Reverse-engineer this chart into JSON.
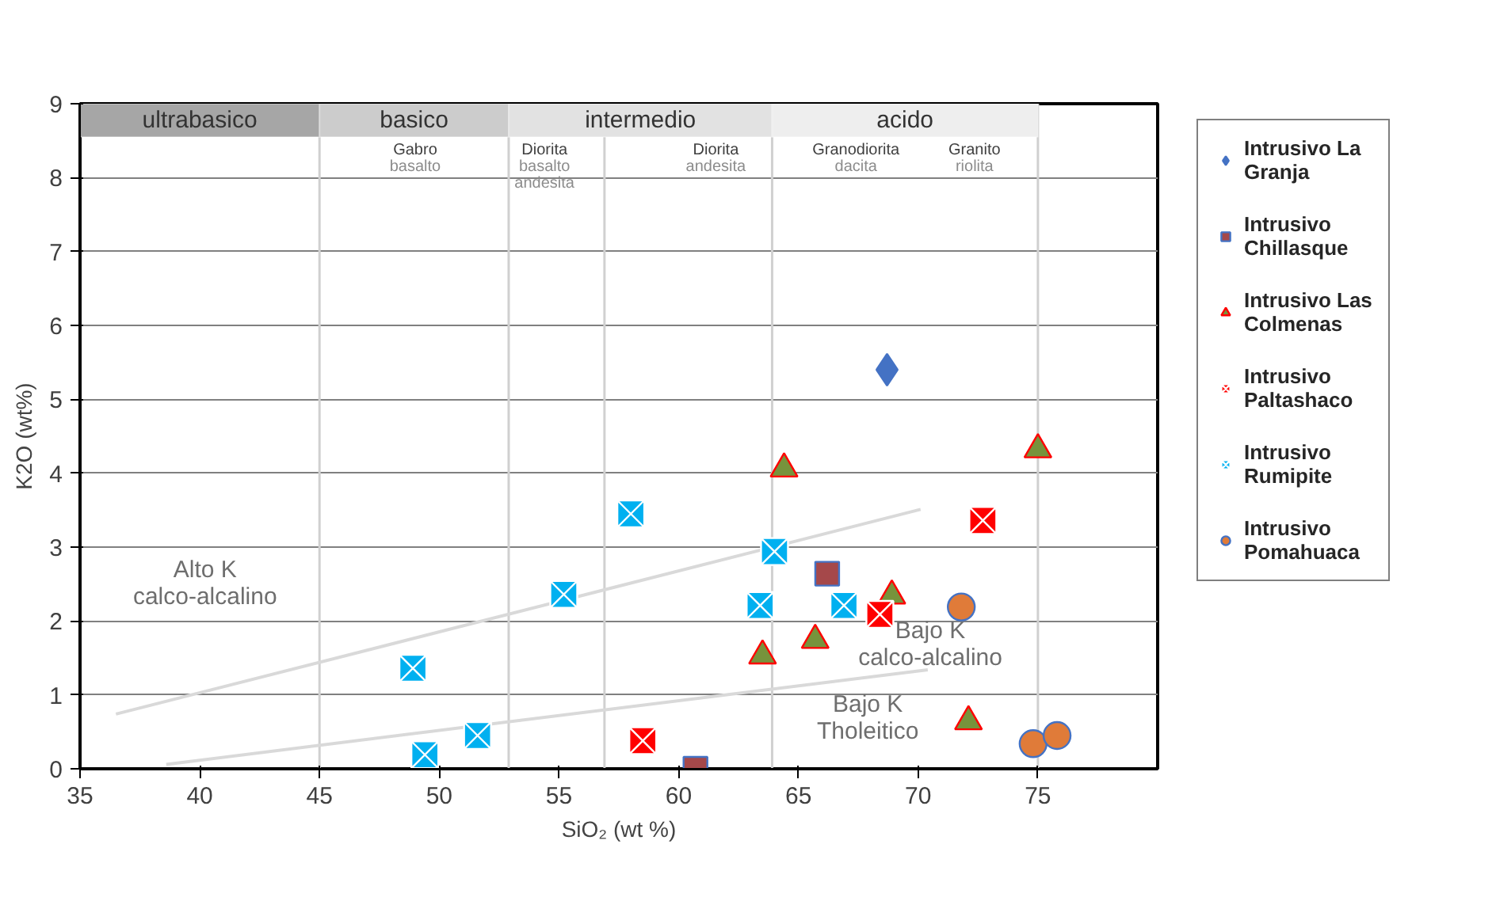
{
  "chart_data": {
    "type": "scatter",
    "xlabel": "SiO₂ (wt %)",
    "ylabel": "K2O (wt%)",
    "xlim": [
      35,
      80
    ],
    "ylim": [
      0,
      9
    ],
    "xticks": [
      35,
      40,
      45,
      50,
      55,
      60,
      65,
      70,
      75
    ],
    "yticks": [
      0,
      1,
      2,
      3,
      4,
      5,
      6,
      7,
      8,
      9
    ],
    "grid": "y",
    "legend": "right",
    "bands": [
      {
        "axis": "x",
        "from": 35,
        "to": 45,
        "label": "ultrabasico",
        "color": "#a6a6a6"
      },
      {
        "axis": "x",
        "from": 45,
        "to": 52.9,
        "label": "basico",
        "color": "#cccccc"
      },
      {
        "axis": "x",
        "from": 52.9,
        "to": 63.9,
        "label": "intermedio",
        "color": "#e2e2e2"
      },
      {
        "axis": "x",
        "from": 63.9,
        "to": 75,
        "label": "acido",
        "color": "#eeeeee"
      }
    ],
    "ref_lines": [
      {
        "axis": "x",
        "value": 45,
        "color": "#d0d0d0"
      },
      {
        "axis": "x",
        "value": 52.9,
        "color": "#d0d0d0"
      },
      {
        "axis": "x",
        "value": 56.9,
        "color": "#d0d0d0"
      },
      {
        "axis": "x",
        "value": 63.9,
        "color": "#d0d0d0"
      },
      {
        "axis": "x",
        "value": 75,
        "color": "#d0d0d0"
      }
    ],
    "annotations": [
      "Alto K\ncalco-alcalino",
      "Bajo K\ncalco-alcalino",
      "Bajo K\nTholeitico",
      "Gabro\nbasalto",
      "Diorita\nbasalto\nandesita",
      "Diorita\nandesita",
      "Granodiorita\ndacita",
      "Granito\nriolita"
    ],
    "series": [
      {
        "type": "line",
        "color": "#d9d9d9",
        "x": [
          36.5,
          70.1
        ],
        "values": [
          0.74,
          3.51
        ]
      },
      {
        "type": "line",
        "color": "#d9d9d9",
        "x": [
          38.6,
          70.4
        ],
        "values": [
          0.06,
          1.34
        ]
      },
      {
        "name": "Intrusivo La Granja",
        "color": "#4472c4",
        "marker": "diamond",
        "x": [
          68.7
        ],
        "values": [
          5.4
        ]
      },
      {
        "name": "Intrusivo Chillasque",
        "color": "#a5484a",
        "marker": "square",
        "x": [
          66.2,
          60.7
        ],
        "values": [
          2.64,
          0.0
        ]
      },
      {
        "name": "Intrusivo Las Colmenas",
        "color": "#77933c",
        "marker": "triangle",
        "x": [
          64.4,
          75.0,
          68.9,
          65.7,
          63.5,
          72.1
        ],
        "values": [
          4.06,
          4.32,
          2.34,
          1.74,
          1.53,
          0.64
        ]
      },
      {
        "name": "Intrusivo Paltashaco",
        "color": "#ff0000",
        "marker": "cross",
        "x": [
          72.7,
          68.4,
          58.5
        ],
        "values": [
          3.36,
          2.09,
          0.38
        ]
      },
      {
        "name": "Intrusivo Rumipite",
        "color": "#00b0f0",
        "marker": "cross",
        "x": [
          58.0,
          64.0,
          63.4,
          66.9,
          55.2,
          48.9,
          51.6,
          49.4
        ],
        "values": [
          3.45,
          2.94,
          2.21,
          2.21,
          2.36,
          1.36,
          0.45,
          0.19
        ]
      },
      {
        "name": "Intrusivo Pomahuaca",
        "color": "#e07b39",
        "marker": "circle",
        "x": [
          71.8,
          74.8,
          75.8
        ],
        "values": [
          2.19,
          0.34,
          0.45
        ]
      }
    ]
  }
}
